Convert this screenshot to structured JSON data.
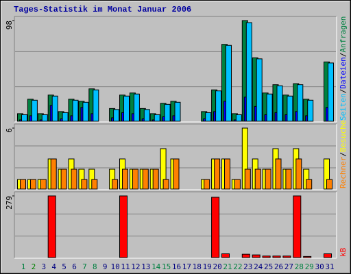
{
  "title": "Tages-Statistik im Monat Januar 2006",
  "days": [
    "1",
    "2",
    "3",
    "4",
    "5",
    "6",
    "7",
    "8",
    "9",
    "10",
    "11",
    "12",
    "13",
    "14",
    "15",
    "16",
    "17",
    "18",
    "19",
    "20",
    "21",
    "22",
    "23",
    "24",
    "25",
    "26",
    "27",
    "28",
    "29",
    "30",
    "31"
  ],
  "day_colors": [
    "#008040",
    "#008000",
    "#000080",
    "#000080",
    "#000080",
    "#000080",
    "#008040",
    "#008040",
    "#000080",
    "#000080",
    "#000080",
    "#000080",
    "#000080",
    "#008040",
    "#008040",
    "#000080",
    "#000080",
    "#000080",
    "#000080",
    "#000080",
    "#008040",
    "#008040",
    "#000080",
    "#000080",
    "#000080",
    "#000080",
    "#000080",
    "#008040",
    "#008040",
    "#000080",
    "#000080"
  ],
  "legend_separator": "/",
  "chart_data": [
    {
      "type": "bar",
      "ylim": [
        0,
        98
      ],
      "yticks": [
        98
      ],
      "series": [
        {
          "name": "Anfragen",
          "color": "#008040",
          "values": [
            8,
            22,
            8,
            26,
            10,
            22,
            20,
            32,
            0,
            13,
            26,
            28,
            13,
            8,
            18,
            20,
            0,
            0,
            10,
            31,
            75,
            8,
            98,
            62,
            28,
            36,
            26,
            37,
            22,
            0,
            58
          ]
        },
        {
          "name": "Dateien",
          "color": "#0000ff",
          "values": [
            2,
            6,
            2,
            16,
            3,
            6,
            14,
            8,
            0,
            4,
            9,
            8,
            3,
            2,
            5,
            6,
            0,
            0,
            3,
            10,
            20,
            2,
            24,
            15,
            7,
            9,
            7,
            10,
            6,
            0,
            14
          ]
        },
        {
          "name": "Seiten",
          "color": "#00c0ff",
          "values": [
            7,
            21,
            7,
            25,
            9,
            21,
            19,
            31,
            0,
            12,
            25,
            27,
            12,
            7,
            17,
            19,
            0,
            0,
            9,
            30,
            74,
            7,
            96,
            61,
            27,
            35,
            25,
            36,
            21,
            0,
            57
          ]
        }
      ]
    },
    {
      "type": "bar",
      "ylim": [
        0,
        6
      ],
      "yticks": [
        6
      ],
      "series": [
        {
          "name": "Besuche",
          "color": "#ffff00",
          "values": [
            1,
            1,
            1,
            3,
            2,
            3,
            2,
            2,
            0,
            2,
            3,
            2,
            2,
            2,
            4,
            3,
            0,
            0,
            1,
            3,
            3,
            1,
            6,
            3,
            2,
            4,
            2,
            4,
            2,
            0,
            3
          ]
        },
        {
          "name": "Rechner",
          "color": "#ff8000",
          "values": [
            1,
            1,
            1,
            3,
            2,
            2,
            1,
            1,
            0,
            1,
            2,
            2,
            2,
            2,
            1,
            3,
            0,
            0,
            1,
            3,
            3,
            1,
            2,
            2,
            2,
            3,
            2,
            3,
            1,
            0,
            1
          ]
        }
      ]
    },
    {
      "type": "bar",
      "ylim": [
        0,
        279
      ],
      "yticks": [
        279
      ],
      "series": [
        {
          "name": "kB",
          "color": "#ff0000",
          "values": [
            0,
            0,
            0,
            279,
            0,
            0,
            3,
            0,
            0,
            0,
            279,
            3,
            0,
            0,
            0,
            0,
            0,
            0,
            3,
            273,
            20,
            0,
            18,
            15,
            10,
            10,
            10,
            279,
            8,
            0,
            20
          ]
        }
      ]
    }
  ]
}
